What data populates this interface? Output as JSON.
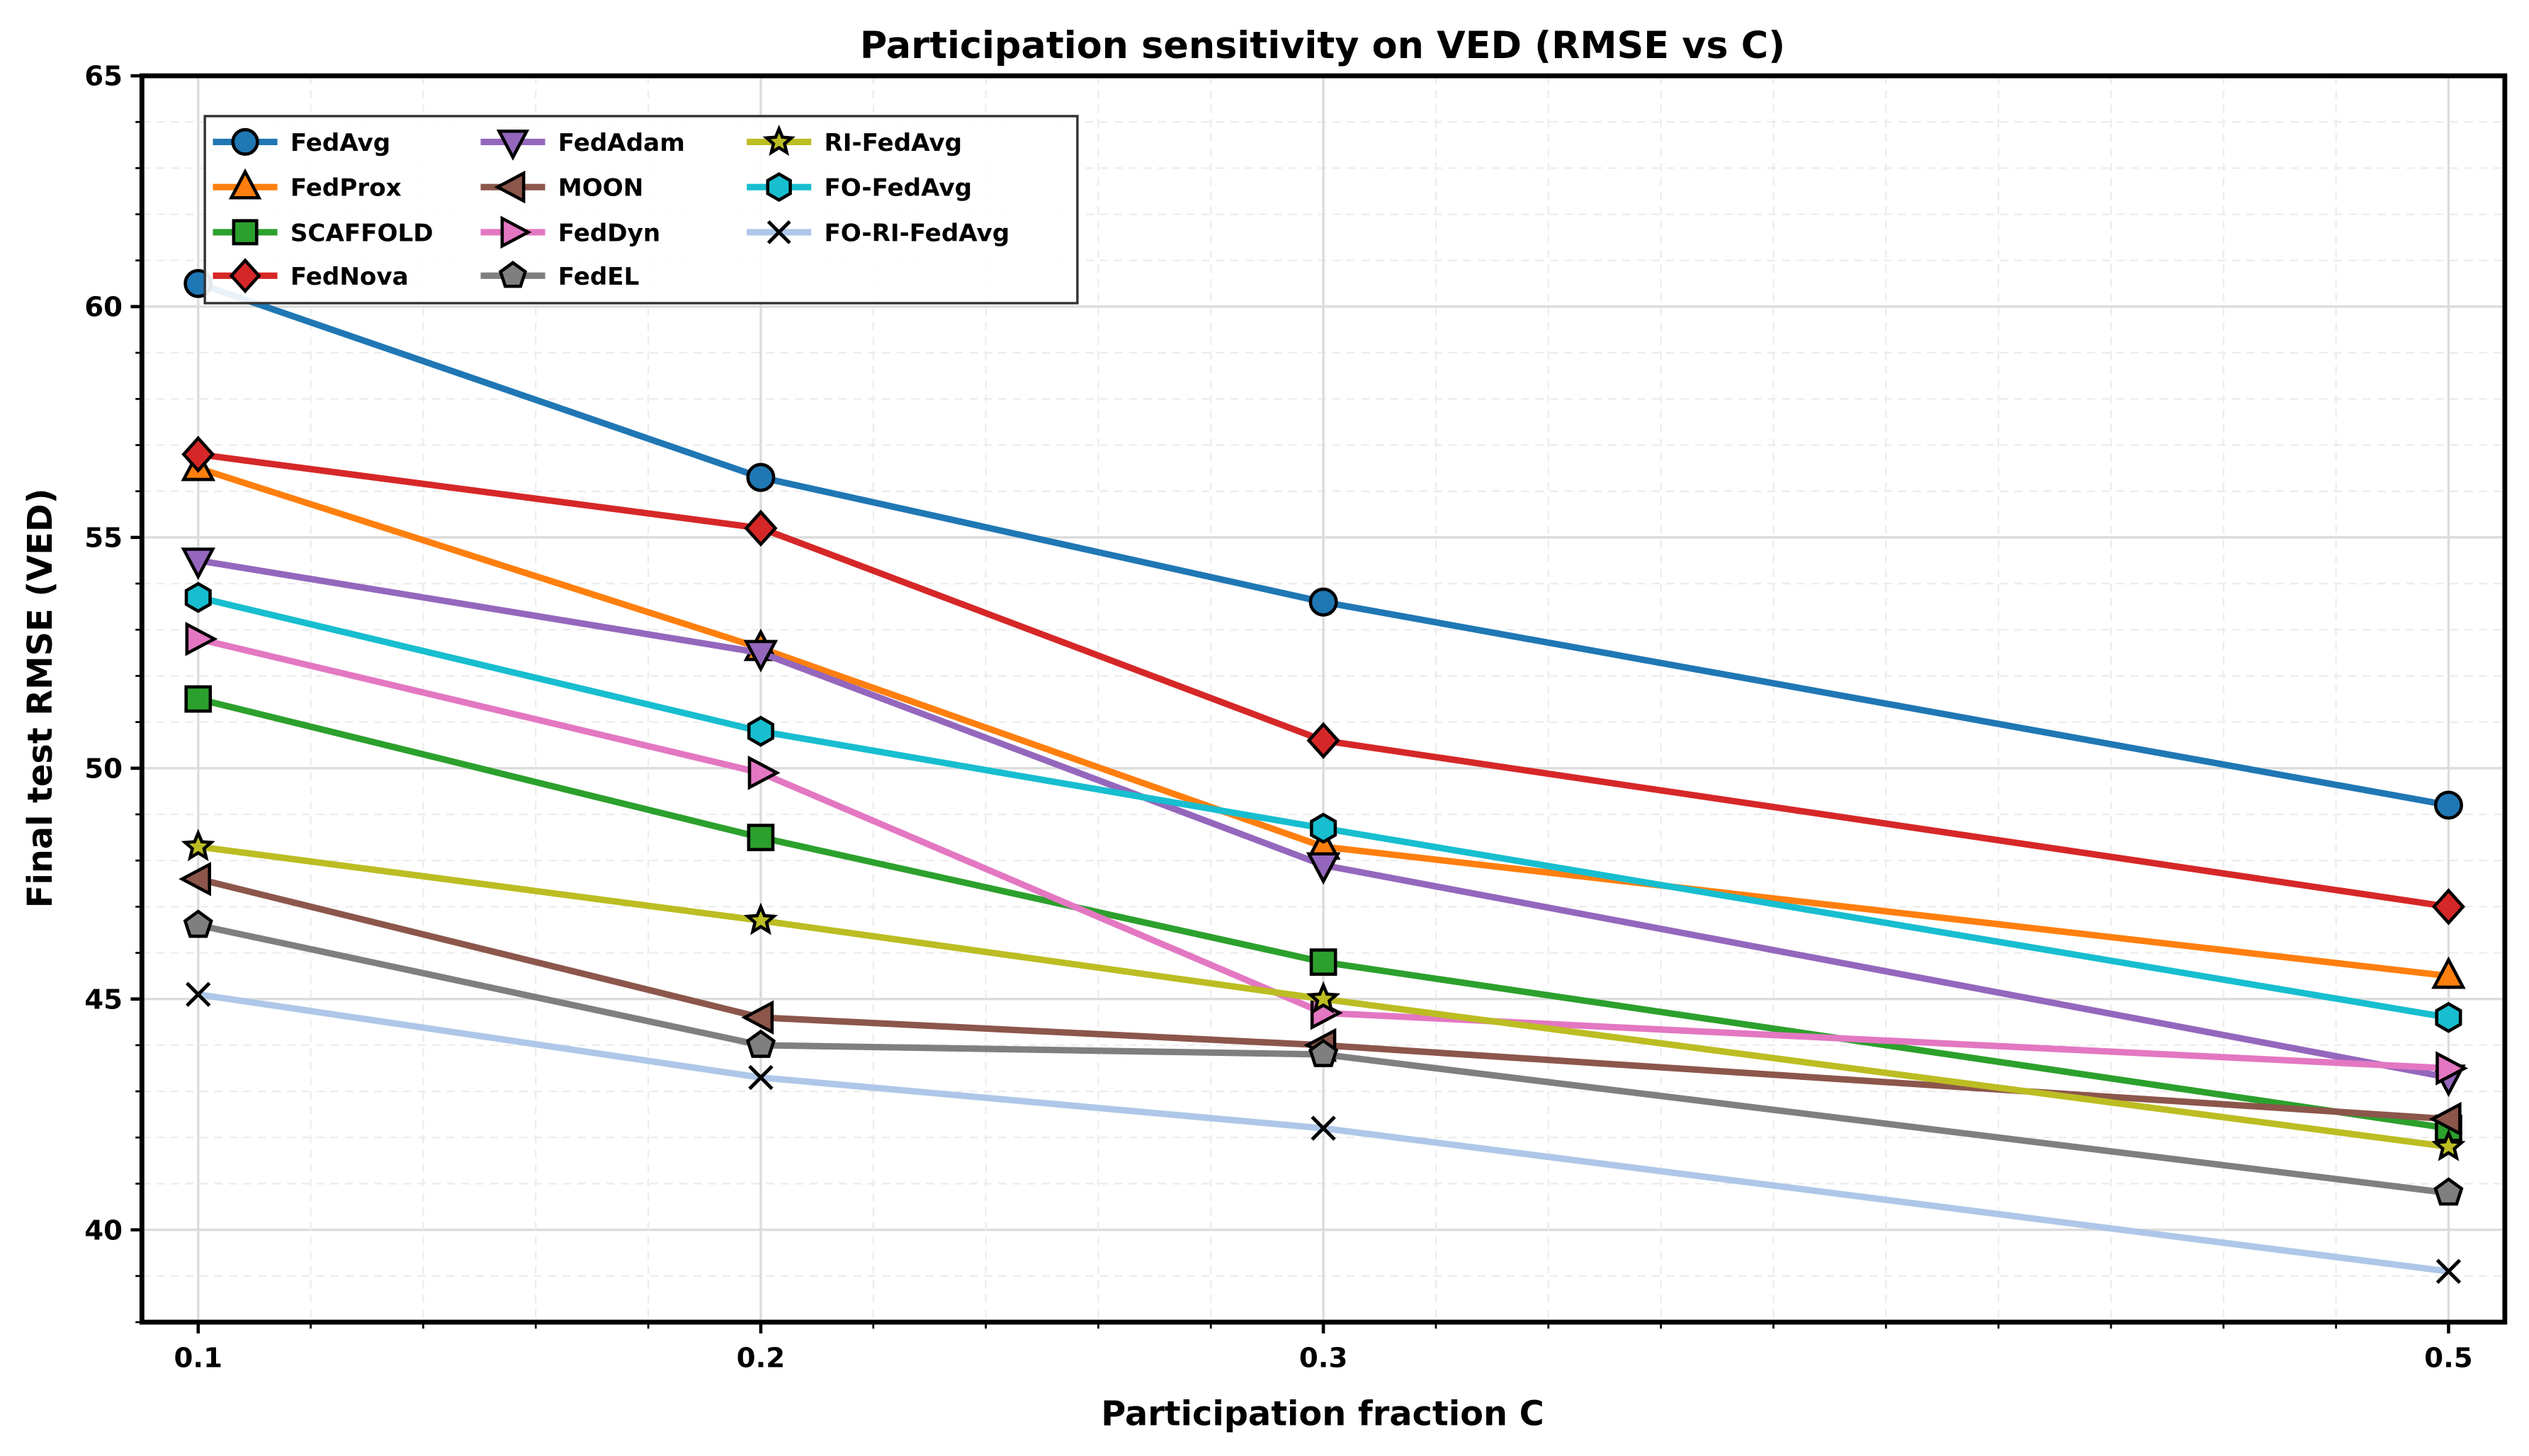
{
  "chart_data": {
    "type": "line",
    "title": "Participation sensitivity on VED (RMSE vs C)",
    "xlabel": "Participation fraction C",
    "ylabel": "Final test RMSE (VED)",
    "x": [
      0.1,
      0.2,
      0.3,
      0.5
    ],
    "x_tick_labels": [
      "0.1",
      "0.2",
      "0.3",
      "0.5"
    ],
    "y_ticks": [
      40,
      45,
      50,
      55,
      60,
      65
    ],
    "xlim": [
      0.09,
      0.51
    ],
    "ylim": [
      38,
      65
    ],
    "grid": true,
    "legend_placement": "upper-left",
    "series": [
      {
        "name": "FedAvg",
        "color": "#1f77b4",
        "marker": "circle",
        "values": [
          60.5,
          56.3,
          53.6,
          49.2
        ]
      },
      {
        "name": "FedProx",
        "color": "#ff7f0e",
        "marker": "triangle-up",
        "values": [
          56.5,
          52.6,
          48.3,
          45.5
        ]
      },
      {
        "name": "SCAFFOLD",
        "color": "#2ca02c",
        "marker": "square",
        "values": [
          51.5,
          48.5,
          45.8,
          42.2
        ]
      },
      {
        "name": "FedNova",
        "color": "#d62728",
        "marker": "diamond",
        "values": [
          56.8,
          55.2,
          50.6,
          47.0
        ]
      },
      {
        "name": "FedAdam",
        "color": "#9467bd",
        "marker": "triangle-down",
        "values": [
          54.5,
          52.5,
          47.9,
          43.3
        ]
      },
      {
        "name": "MOON",
        "color": "#8c564b",
        "marker": "triangle-left",
        "values": [
          47.6,
          44.6,
          44.0,
          42.4
        ]
      },
      {
        "name": "FedDyn",
        "color": "#e377c2",
        "marker": "triangle-right",
        "values": [
          52.8,
          49.9,
          44.7,
          43.5
        ]
      },
      {
        "name": "FedEL",
        "color": "#7f7f7f",
        "marker": "pentagon",
        "values": [
          46.6,
          44.0,
          43.8,
          40.8
        ]
      },
      {
        "name": "RI-FedAvg",
        "color": "#bcbd22",
        "marker": "star",
        "values": [
          48.3,
          46.7,
          45.0,
          41.8
        ]
      },
      {
        "name": "FO-FedAvg",
        "color": "#17becf",
        "marker": "hexagon",
        "values": [
          53.7,
          50.8,
          48.7,
          44.6
        ]
      },
      {
        "name": "FO-RI-FedAvg",
        "color": "#aec7e8",
        "marker": "x",
        "values": [
          45.1,
          43.3,
          42.2,
          39.1
        ]
      }
    ]
  }
}
